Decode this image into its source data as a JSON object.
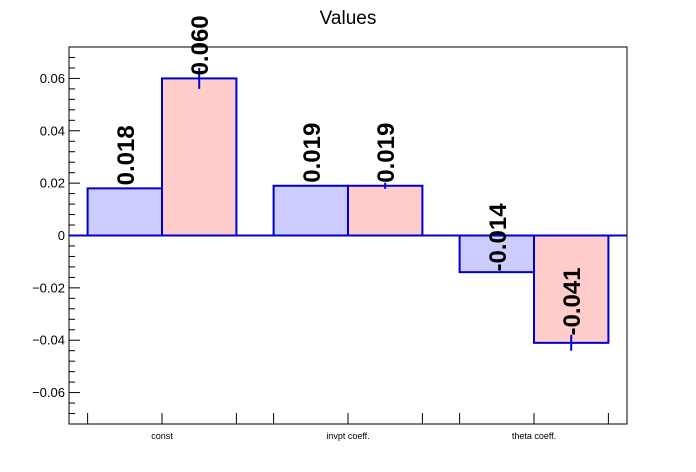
{
  "chart_data": {
    "type": "bar",
    "title": "Values",
    "xlabel": "",
    "ylabel": "",
    "categories": [
      "const",
      "invpt coeff.",
      "theta coeff."
    ],
    "series": [
      {
        "values": [
          0.018,
          0.019,
          -0.014
        ],
        "errors": [
          0.0,
          0.0,
          0.0
        ],
        "labels": [
          "0.018",
          "0.019",
          "-0.014"
        ],
        "fill": "#ccccff",
        "stroke": "#0000cc"
      },
      {
        "values": [
          0.06,
          0.019,
          -0.041
        ],
        "errors": [
          0.004,
          0.0012,
          0.003
        ],
        "labels": [
          "0.060",
          "0.019",
          "-0.041"
        ],
        "fill": "#ffcccc",
        "stroke": "#0000cc"
      }
    ],
    "ylim": [
      -0.072,
      0.072
    ],
    "yticks": [
      {
        "v": -0.06,
        "label": "−0.06"
      },
      {
        "v": -0.04,
        "label": "−0.04"
      },
      {
        "v": -0.02,
        "label": "−0.02"
      },
      {
        "v": 0,
        "label": "0"
      },
      {
        "v": 0.02,
        "label": "0.02"
      },
      {
        "v": 0.04,
        "label": "0.04"
      },
      {
        "v": 0.06,
        "label": "0.06"
      }
    ],
    "grid": false,
    "legend": "none"
  }
}
